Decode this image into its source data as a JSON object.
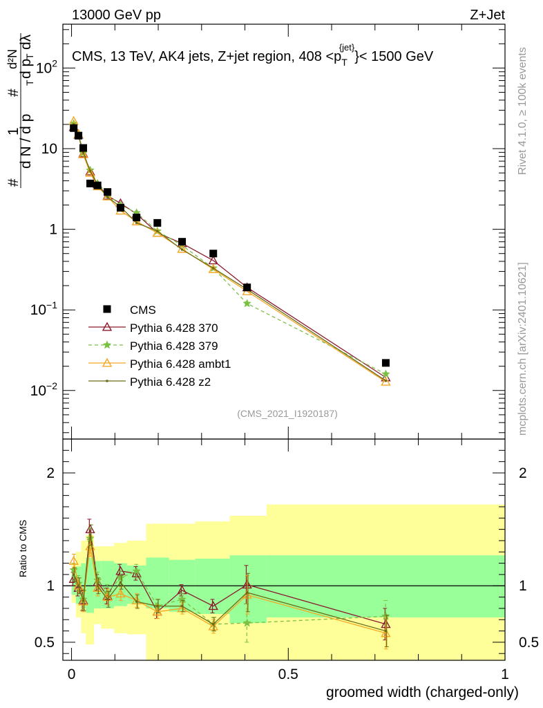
{
  "header": {
    "left": "13000 GeV pp",
    "right": "Z+Jet"
  },
  "side_labels": {
    "rivet": "Rivet 4.1.0, ≥ 100k events",
    "mcplots": "mcplots.cern.ch [arXiv:2401.10621]"
  },
  "chart_data": {
    "type": "scatter",
    "title": "CMS, 13 TeV, AK4 jets, Z+jet region, 408 <p_T^{jet}< 1500 GeV",
    "title_parts": {
      "prefix": "CMS, 13 TeV, AK4 jets, Z+jet region, 408 <p",
      "sub": "T",
      "sup": "{jet}",
      "suffix": "}< 1500 GeV"
    },
    "analysis_id": "(CMS_2021_I1920187)",
    "xlabel": "groomed width (charged-only)",
    "ylabel_lines": [
      "#",
      "d N / d p",
      "T",
      "d²N",
      "d p",
      "T",
      "dλ",
      "1",
      "#"
    ],
    "ratio_ylabel": "Ratio to CMS",
    "xlim": [
      -0.02,
      1.0
    ],
    "ylim_log": [
      0.0025,
      350
    ],
    "ratio_ylim": [
      0.34,
      2.3
    ],
    "x_ticks": [
      {
        "v": 0,
        "label": "0"
      },
      {
        "v": 0.5,
        "label": "0.5"
      },
      {
        "v": 1,
        "label": "1"
      }
    ],
    "y_ticks": [
      {
        "v": 0.01,
        "base": "10",
        "exp": "−2"
      },
      {
        "v": 0.1,
        "base": "10",
        "exp": "−1"
      },
      {
        "v": 1,
        "label": "1"
      },
      {
        "v": 10,
        "label": "10"
      },
      {
        "v": 100,
        "base": "10",
        "exp": "2"
      }
    ],
    "ratio_ticks": [
      {
        "v": 0.5,
        "label": "0.5"
      },
      {
        "v": 1,
        "label": "1"
      },
      {
        "v": 2,
        "label": "2"
      }
    ],
    "x": [
      0.005,
      0.016,
      0.027,
      0.043,
      0.06,
      0.083,
      0.113,
      0.15,
      0.198,
      0.255,
      0.327,
      0.405,
      0.725
    ],
    "bin_edges": [
      0,
      0.01,
      0.022,
      0.033,
      0.052,
      0.068,
      0.098,
      0.128,
      0.172,
      0.225,
      0.285,
      0.365,
      0.45,
      1.0
    ],
    "cms": [
      18,
      14.5,
      10.2,
      3.7,
      3.5,
      2.9,
      1.85,
      1.4,
      1.2,
      0.7,
      0.5,
      0.19,
      0.022
    ],
    "band_inner": [
      [
        0.92,
        1.1
      ],
      [
        0.84,
        1.17
      ],
      [
        0.8,
        1.2
      ],
      [
        0.76,
        1.25
      ],
      [
        0.8,
        1.22
      ],
      [
        0.8,
        1.22
      ],
      [
        0.82,
        1.2
      ],
      [
        0.84,
        1.18
      ],
      [
        0.8,
        1.25
      ],
      [
        0.77,
        1.23
      ],
      [
        0.75,
        1.24
      ],
      [
        0.67,
        1.27
      ],
      [
        0.72,
        1.27
      ]
    ],
    "band_outer": [
      [
        0.85,
        1.2
      ],
      [
        0.72,
        1.3
      ],
      [
        0.58,
        1.4
      ],
      [
        0.48,
        1.45
      ],
      [
        0.66,
        1.35
      ],
      [
        0.62,
        1.35
      ],
      [
        0.58,
        1.38
      ],
      [
        0.57,
        1.4
      ],
      [
        0.34,
        1.55
      ],
      [
        0.34,
        1.55
      ],
      [
        0.34,
        1.57
      ],
      [
        0.34,
        1.62
      ],
      [
        0.34,
        1.72
      ]
    ],
    "series": [
      {
        "name": "Pythia 6.428 370",
        "color": "#8b1a2e",
        "marker": "triangle-open",
        "dash": "none",
        "values": [
          18.5,
          14.8,
          8.7,
          5.2,
          3.6,
          2.6,
          2.1,
          1.55,
          0.9,
          0.67,
          0.41,
          0.19,
          0.0145
        ],
        "ratio": [
          1.06,
          0.98,
          0.87,
          1.5,
          1.03,
          0.91,
          1.13,
          1.11,
          0.77,
          0.96,
          0.82,
          1.01,
          0.66
        ],
        "ratio_err": [
          0.06,
          0.07,
          0.09,
          0.09,
          0.07,
          0.07,
          0.06,
          0.06,
          0.06,
          0.05,
          0.06,
          0.17,
          0.14
        ]
      },
      {
        "name": "Pythia 6.428 379",
        "color": "#7ac143",
        "marker": "star",
        "dash": "5,4",
        "values": [
          20.5,
          15.5,
          8.8,
          5.4,
          3.7,
          2.7,
          2.0,
          1.6,
          0.95,
          0.63,
          0.33,
          0.12,
          0.016
        ],
        "ratio": [
          1.14,
          1.02,
          0.88,
          1.42,
          1.05,
          0.94,
          1.07,
          1.13,
          0.82,
          0.88,
          0.66,
          0.67,
          0.73
        ],
        "ratio_err": [
          0.06,
          0.07,
          0.09,
          0.09,
          0.07,
          0.07,
          0.06,
          0.06,
          0.06,
          0.05,
          0.06,
          0.17,
          0.14
        ]
      },
      {
        "name": "Pythia 6.428 ambt1",
        "color": "#f5a623",
        "marker": "triangle-open",
        "dash": "none",
        "values": [
          22,
          15.2,
          8.5,
          5.0,
          3.4,
          2.55,
          1.7,
          1.25,
          0.9,
          0.57,
          0.32,
          0.17,
          0.0128
        ],
        "ratio": [
          1.22,
          1.0,
          0.86,
          1.35,
          0.98,
          0.9,
          0.93,
          0.87,
          0.77,
          0.8,
          0.64,
          0.92,
          0.58
        ],
        "ratio_err": [
          0.06,
          0.07,
          0.09,
          0.09,
          0.07,
          0.07,
          0.06,
          0.06,
          0.06,
          0.05,
          0.06,
          0.17,
          0.14
        ]
      },
      {
        "name": "Pythia 6.428 z2",
        "color": "#6b6b14",
        "marker": "dot",
        "dash": "none",
        "values": [
          20,
          14.6,
          8.9,
          5.3,
          3.6,
          2.5,
          1.9,
          1.2,
          0.95,
          0.56,
          0.33,
          0.18,
          0.0132
        ],
        "ratio": [
          1.1,
          1.0,
          0.87,
          1.45,
          1.0,
          0.88,
          1.03,
          0.86,
          0.82,
          0.82,
          0.66,
          0.94,
          0.6
        ],
        "ratio_err": [
          0.06,
          0.07,
          0.09,
          0.09,
          0.07,
          0.07,
          0.06,
          0.06,
          0.06,
          0.05,
          0.06,
          0.17,
          0.14
        ]
      }
    ],
    "legend": {
      "position": "bottom-left",
      "data_label": "CMS"
    }
  }
}
